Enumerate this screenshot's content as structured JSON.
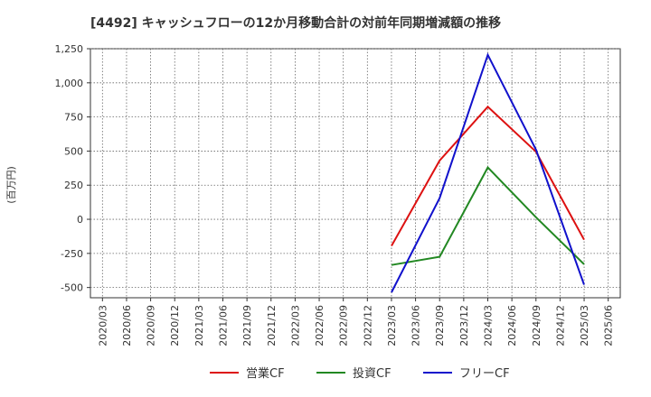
{
  "chart_data": {
    "type": "line",
    "title": "[4492]  キャッシュフローの12か月移動合計の対前年同期増減額の推移",
    "ylabel": "(百万円)",
    "xlabel": "",
    "ylim": [
      -575,
      1250
    ],
    "yticks": [
      1250,
      1000,
      750,
      500,
      250,
      0,
      -250,
      -500
    ],
    "ytick_labels": [
      "1,250",
      "1,000",
      "750",
      "500",
      "250",
      "0",
      "-250",
      "-500"
    ],
    "categories": [
      "2020/03",
      "2020/06",
      "2020/09",
      "2020/12",
      "2021/03",
      "2021/06",
      "2021/09",
      "2021/12",
      "2022/03",
      "2022/06",
      "2022/09",
      "2022/12",
      "2023/03",
      "2023/06",
      "2023/09",
      "2023/12",
      "2024/03",
      "2024/06",
      "2024/09",
      "2024/12",
      "2025/03",
      "2025/06"
    ],
    "legend_position": "bottom",
    "grid": true,
    "series": [
      {
        "name": "営業CF",
        "color": "#dd1111",
        "values": [
          null,
          null,
          null,
          null,
          null,
          null,
          null,
          null,
          null,
          null,
          null,
          null,
          -195,
          null,
          430,
          null,
          825,
          null,
          495,
          null,
          -150,
          null
        ]
      },
      {
        "name": "投資CF",
        "color": "#228822",
        "values": [
          null,
          null,
          null,
          null,
          null,
          null,
          null,
          null,
          null,
          null,
          null,
          null,
          -335,
          null,
          -275,
          null,
          380,
          null,
          15,
          null,
          -330,
          null
        ]
      },
      {
        "name": "フリーCF",
        "color": "#1111cc",
        "values": [
          null,
          null,
          null,
          null,
          null,
          null,
          null,
          null,
          null,
          null,
          null,
          null,
          -535,
          null,
          155,
          null,
          1205,
          null,
          510,
          null,
          -480,
          null
        ]
      }
    ]
  }
}
